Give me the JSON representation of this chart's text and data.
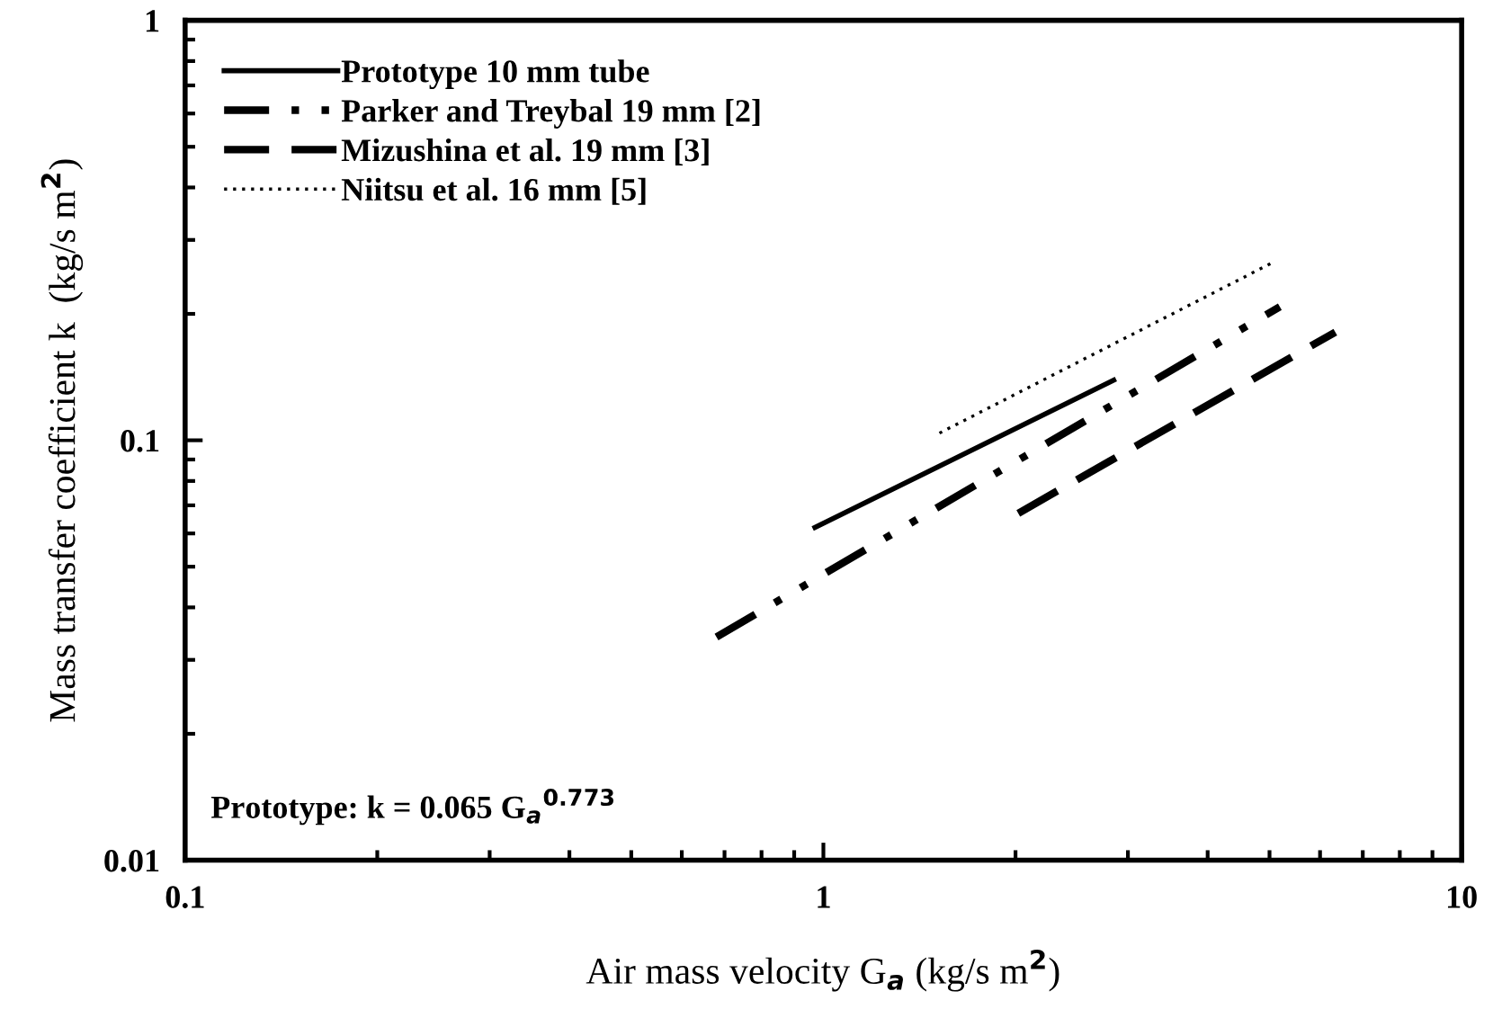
{
  "chart_data": {
    "type": "line",
    "xlabel": "Air mass velocity G$_{a}$ (kg/s m$^{2}$)",
    "ylabel": "Mass transfer coefficient k  (kg/s m$^{2}$)",
    "log": "xy",
    "xlim": [
      0.1,
      10
    ],
    "ylim": [
      0.01,
      1
    ],
    "xticks": [
      0.1,
      1,
      10
    ],
    "yticks": [
      0.01,
      0.1,
      1
    ],
    "grid": false,
    "legend": "top left",
    "marker": "none",
    "series": [
      {
        "name": "Prototype 10 mm tube",
        "color": "#000000",
        "line_style": "solid",
        "x": [
          0.97,
          2.85
        ],
        "values": [
          0.062,
          0.139
        ]
      },
      {
        "name": "Parker and Treybal 19 mm [2]",
        "color": "#000000",
        "line_style": "dashdot",
        "x": [
          0.68,
          5.19
        ],
        "values": [
          0.034,
          0.208
        ]
      },
      {
        "name": "Mizushina et al. 19 mm [3]",
        "color": "#000000",
        "line_style": "dashed",
        "x": [
          2.02,
          6.34
        ],
        "values": [
          0.067,
          0.181
        ]
      },
      {
        "name": "Niitsu et al. 16 mm [5]",
        "color": "#000000",
        "line_style": "dotted",
        "x": [
          1.52,
          5.08
        ],
        "values": [
          0.104,
          0.266
        ]
      }
    ],
    "annotations": [
      "Prototype: k = 0.065 G$_{a}$$^{0.773}$"
    ]
  }
}
